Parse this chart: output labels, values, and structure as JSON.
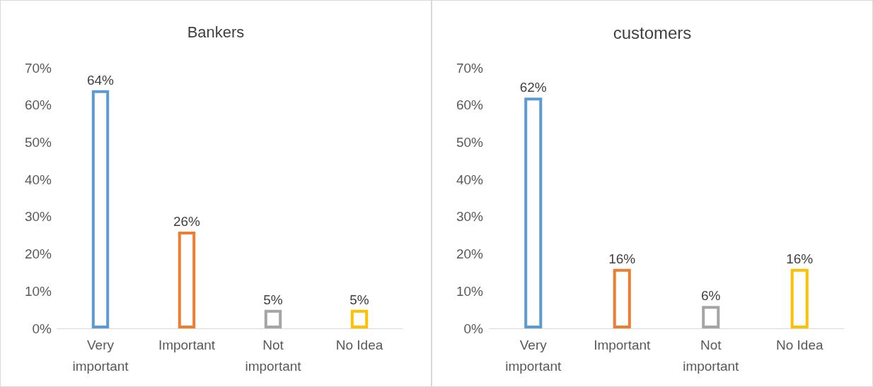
{
  "chart_data": [
    {
      "type": "bar",
      "title": "Bankers",
      "categories": [
        "Very\nimportant",
        "Important",
        "Not\nimportant",
        "No Idea"
      ],
      "values": [
        64,
        26,
        5,
        5
      ],
      "colors": [
        "#5b9bd5",
        "#ed7d31",
        "#a5a5a5",
        "#ffc000"
      ],
      "value_labels": [
        "64%",
        "26%",
        "5%",
        "5%"
      ],
      "ylim": [
        0,
        70
      ],
      "yticks": [
        {
          "value": 0,
          "label": "0%"
        },
        {
          "value": 10,
          "label": "10%"
        },
        {
          "value": 20,
          "label": "20%"
        },
        {
          "value": 30,
          "label": "30%"
        },
        {
          "value": 40,
          "label": "40%"
        },
        {
          "value": 50,
          "label": "50%"
        },
        {
          "value": 60,
          "label": "60%"
        },
        {
          "value": 70,
          "label": "70%"
        }
      ],
      "grid": false
    },
    {
      "type": "bar",
      "title": "customers",
      "categories": [
        "Very\nimportant",
        "Important",
        "Not\nimportant",
        "No Idea"
      ],
      "values": [
        62,
        16,
        6,
        16
      ],
      "colors": [
        "#5b9bd5",
        "#ed7d31",
        "#a5a5a5",
        "#ffc000"
      ],
      "value_labels": [
        "62%",
        "16%",
        "6%",
        "16%"
      ],
      "ylim": [
        0,
        70
      ],
      "yticks": [
        {
          "value": 0,
          "label": "0%"
        },
        {
          "value": 10,
          "label": "10%"
        },
        {
          "value": 20,
          "label": "20%"
        },
        {
          "value": 30,
          "label": "30%"
        },
        {
          "value": 40,
          "label": "40%"
        },
        {
          "value": 50,
          "label": "50%"
        },
        {
          "value": 60,
          "label": "60%"
        },
        {
          "value": 70,
          "label": "70%"
        }
      ],
      "grid": false
    }
  ]
}
